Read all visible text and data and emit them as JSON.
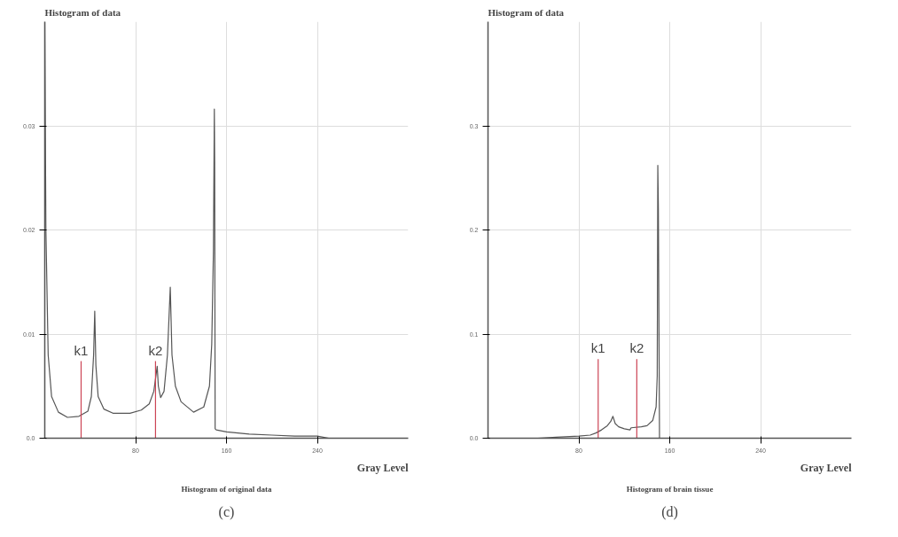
{
  "chart_data": [
    {
      "type": "line",
      "title": "Histogram of data",
      "xlabel": "Gray Level",
      "annotations": [
        "Histogram of original data",
        "(c)"
      ],
      "xlim": [
        0,
        320
      ],
      "ylim": [
        0,
        0.04
      ],
      "xticks": [
        80,
        160,
        240
      ],
      "yticks": [
        {
          "value": 0,
          "label": "0.0"
        },
        0.01,
        0.02,
        0.03
      ],
      "grid": true,
      "marker": "none",
      "line_style": "solid",
      "series": [
        {
          "color": "#555555",
          "x": [
            0,
            1,
            3,
            6,
            12,
            20,
            30,
            38,
            41,
            43,
            44,
            45,
            47,
            52,
            60,
            75,
            85,
            92,
            96,
            99,
            100,
            102,
            105,
            108,
            110.5,
            112,
            115,
            120,
            131,
            140,
            145,
            147,
            148.5,
            149.3,
            149.6,
            150,
            151,
            160,
            180,
            200,
            220,
            240,
            250
          ],
          "values": [
            0.04,
            0.02,
            0.008,
            0.004,
            0.0025,
            0.002,
            0.0021,
            0.0026,
            0.004,
            0.008,
            0.0122,
            0.007,
            0.004,
            0.0028,
            0.0024,
            0.0024,
            0.0027,
            0.0033,
            0.0045,
            0.0069,
            0.005,
            0.0039,
            0.0045,
            0.008,
            0.0145,
            0.008,
            0.005,
            0.0035,
            0.0025,
            0.003,
            0.005,
            0.009,
            0.018,
            0.0316,
            0.0265,
            0.0009,
            0.0008,
            0.0006,
            0.0004,
            0.0003,
            0.0002,
            0.0002,
            0
          ]
        }
      ],
      "ref_lines": [
        {
          "axis": "x",
          "value": 32,
          "label": "k1",
          "color": "#cc4455"
        },
        {
          "axis": "x",
          "value": 97.5,
          "label": "k2",
          "color": "#cc4455"
        }
      ]
    },
    {
      "type": "line",
      "title": "Histogram of data",
      "xlabel": "Gray Level",
      "annotations": [
        "Histogram of brain tissue",
        "(d)"
      ],
      "xlim": [
        0,
        320
      ],
      "ylim": [
        0,
        0.4
      ],
      "xticks": [
        80,
        160,
        240
      ],
      "yticks": [
        {
          "value": 0,
          "label": "0.0"
        },
        0.1,
        0.2,
        0.3
      ],
      "grid": true,
      "marker": "none",
      "line_style": "solid",
      "series": [
        {
          "color": "#555555",
          "x": [
            44,
            60,
            80,
            90,
            95,
            100,
            105,
            108,
            110,
            112,
            115,
            120,
            125,
            126,
            135,
            140,
            145,
            148,
            149,
            149.5,
            150,
            151
          ],
          "values": [
            0,
            0.001,
            0.002,
            0.003,
            0.005,
            0.008,
            0.012,
            0.016,
            0.021,
            0.014,
            0.011,
            0.009,
            0.008,
            0.01,
            0.011,
            0.012,
            0.017,
            0.03,
            0.06,
            0.262,
            0.22,
            0
          ]
        }
      ],
      "ref_lines": [
        {
          "axis": "x",
          "value": 97,
          "label": "k1",
          "color": "#cc4455"
        },
        {
          "axis": "x",
          "value": 131,
          "label": "k2",
          "color": "#cc4455"
        }
      ]
    }
  ]
}
